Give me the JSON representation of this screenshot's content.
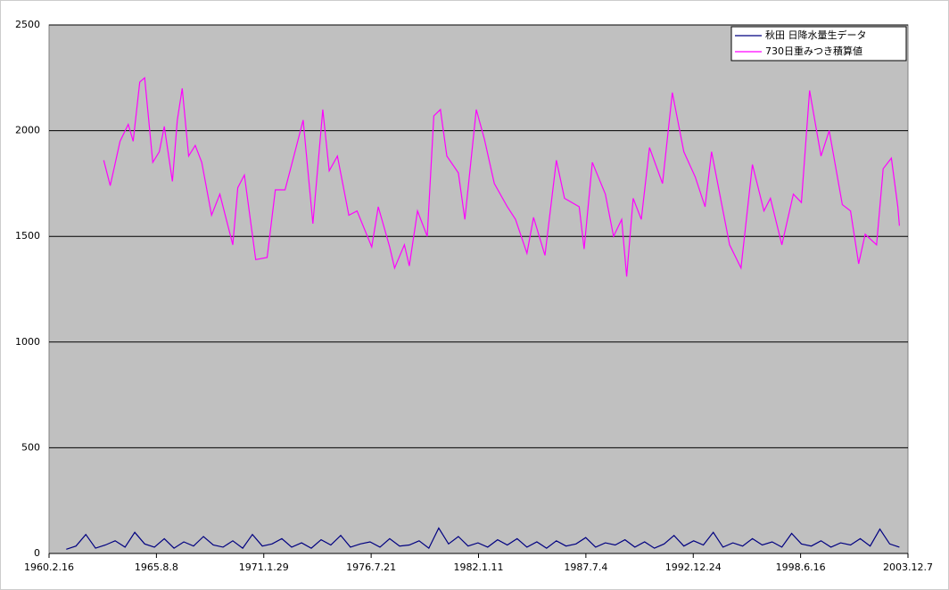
{
  "chart_data": {
    "type": "line",
    "xlim": [
      "1960.2.16",
      "2003.12.7"
    ],
    "xticks": [
      "1960.2.16",
      "1965.8.8",
      "1971.1.29",
      "1976.7.21",
      "1982.1.11",
      "1987.7.4",
      "1992.12.24",
      "1998.6.16",
      "2003.12.7"
    ],
    "ylim": [
      0,
      2500
    ],
    "yticks": [
      0,
      500,
      1000,
      1500,
      2000,
      2500
    ],
    "grid": true,
    "legend": "top-right",
    "series": [
      {
        "name": "秋田 日降水量生データ",
        "color": "#000080",
        "x": [
          "1961.1.1",
          "1961.7.1",
          "1962.1.1",
          "1962.7.1",
          "1963.1.1",
          "1963.7.1",
          "1964.1.1",
          "1964.7.1",
          "1965.1.1",
          "1965.7.1",
          "1966.1.1",
          "1966.7.1",
          "1967.1.1",
          "1967.7.1",
          "1968.1.1",
          "1968.7.1",
          "1969.1.1",
          "1969.7.1",
          "1970.1.1",
          "1970.7.1",
          "1971.1.1",
          "1971.7.1",
          "1972.1.1",
          "1972.7.1",
          "1973.1.1",
          "1973.7.1",
          "1974.1.1",
          "1974.7.1",
          "1975.1.1",
          "1975.7.1",
          "1976.1.1",
          "1976.7.1",
          "1977.1.1",
          "1977.7.1",
          "1978.1.1",
          "1978.7.1",
          "1979.1.1",
          "1979.7.1",
          "1980.1.1",
          "1980.7.1",
          "1981.1.1",
          "1981.7.1",
          "1982.1.1",
          "1982.7.1",
          "1983.1.1",
          "1983.7.1",
          "1984.1.1",
          "1984.7.1",
          "1985.1.1",
          "1985.7.1",
          "1986.1.1",
          "1986.7.1",
          "1987.1.1",
          "1987.7.1",
          "1988.1.1",
          "1988.7.1",
          "1989.1.1",
          "1989.7.1",
          "1990.1.1",
          "1990.7.1",
          "1991.1.1",
          "1991.7.1",
          "1992.1.1",
          "1992.7.1",
          "1993.1.1",
          "1993.7.1",
          "1994.1.1",
          "1994.7.1",
          "1995.1.1",
          "1995.7.1",
          "1996.1.1",
          "1996.7.1",
          "1997.1.1",
          "1997.7.1",
          "1998.1.1",
          "1998.7.1",
          "1999.1.1",
          "1999.7.1",
          "2000.1.1",
          "2000.7.1",
          "2001.1.1",
          "2001.7.1",
          "2002.1.1",
          "2002.7.1",
          "2003.1.1",
          "2003.7.1"
        ],
        "values": [
          20,
          35,
          90,
          25,
          40,
          60,
          30,
          100,
          45,
          30,
          70,
          25,
          55,
          35,
          80,
          40,
          30,
          60,
          25,
          90,
          35,
          45,
          70,
          30,
          50,
          25,
          65,
          40,
          85,
          30,
          45,
          55,
          30,
          70,
          35,
          40,
          60,
          25,
          120,
          45,
          80,
          35,
          50,
          30,
          65,
          40,
          70,
          30,
          55,
          25,
          60,
          35,
          45,
          75,
          30,
          50,
          40,
          65,
          30,
          55,
          25,
          45,
          85,
          35,
          60,
          40,
          100,
          30,
          50,
          35,
          70,
          40,
          55,
          30,
          95,
          45,
          35,
          60,
          30,
          50,
          40,
          70,
          35,
          115,
          45,
          30
        ]
      },
      {
        "name": "730日重みつき積算値",
        "color": "#ff00ff",
        "x": [
          "1962.12.1",
          "1963.4.1",
          "1963.10.1",
          "1964.3.1",
          "1964.6.1",
          "1964.10.1",
          "1965.1.1",
          "1965.6.1",
          "1965.10.1",
          "1966.1.1",
          "1966.6.1",
          "1966.9.1",
          "1966.12.1",
          "1967.4.1",
          "1967.8.1",
          "1967.12.1",
          "1968.6.1",
          "1968.11.1",
          "1969.7.1",
          "1969.10.1",
          "1970.2.1",
          "1970.9.1",
          "1971.4.1",
          "1971.9.1",
          "1972.3.1",
          "1972.8.1",
          "1973.2.1",
          "1973.8.1",
          "1974.2.1",
          "1974.6.1",
          "1974.11.1",
          "1975.6.1",
          "1975.11.1",
          "1976.8.1",
          "1976.12.1",
          "1977.7.1",
          "1977.10.1",
          "1978.4.1",
          "1978.7.1",
          "1978.12.1",
          "1979.6.1",
          "1979.10.1",
          "1980.2.1",
          "1980.6.1",
          "1981.1.1",
          "1981.5.1",
          "1981.12.1",
          "1982.5.1",
          "1982.11.1",
          "1983.7.1",
          "1983.12.1",
          "1984.7.1",
          "1984.11.1",
          "1985.6.1",
          "1986.1.1",
          "1986.6.1",
          "1987.3.1",
          "1987.6.1",
          "1987.11.1",
          "1988.7.1",
          "1988.12.1",
          "1989.5.1",
          "1989.8.1",
          "1989.12.1",
          "1990.5.1",
          "1990.10.1",
          "1991.6.1",
          "1991.12.1",
          "1992.7.1",
          "1993.2.1",
          "1993.8.1",
          "1993.12.1",
          "1994.6.1",
          "1994.11.1",
          "1995.6.1",
          "1996.1.1",
          "1996.8.1",
          "1996.12.1",
          "1997.7.1",
          "1998.2.1",
          "1998.7.1",
          "1998.12.1",
          "1999.7.1",
          "1999.12.1",
          "2000.8.1",
          "2001.1.1",
          "2001.6.1",
          "2001.10.1",
          "2002.5.1",
          "2002.9.1",
          "2003.2.1",
          "2003.6.1",
          "2003.7.1"
        ],
        "values": [
          1860,
          1740,
          1950,
          2030,
          1950,
          2230,
          2250,
          1850,
          1900,
          2020,
          1760,
          2050,
          2200,
          1880,
          1930,
          1850,
          1600,
          1700,
          1460,
          1730,
          1790,
          1390,
          1400,
          1720,
          1720,
          1870,
          2050,
          1560,
          2100,
          1810,
          1880,
          1600,
          1620,
          1450,
          1640,
          1450,
          1350,
          1460,
          1360,
          1620,
          1500,
          2070,
          2100,
          1880,
          1800,
          1580,
          2100,
          1960,
          1750,
          1640,
          1580,
          1420,
          1590,
          1410,
          1860,
          1680,
          1640,
          1440,
          1850,
          1700,
          1500,
          1580,
          1310,
          1680,
          1580,
          1920,
          1750,
          2180,
          1900,
          1780,
          1640,
          1900,
          1660,
          1460,
          1350,
          1840,
          1620,
          1680,
          1460,
          1700,
          1660,
          2190,
          1880,
          2000,
          1650,
          1620,
          1370,
          1510,
          1460,
          1820,
          1870,
          1640,
          1550
        ]
      }
    ]
  }
}
